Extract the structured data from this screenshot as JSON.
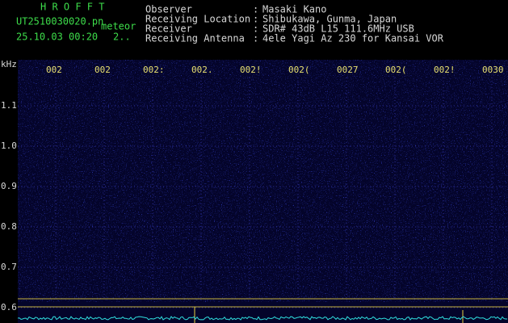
{
  "header": {
    "app": "H R O F F T",
    "file": "UT2510030020.pn",
    "mode": "meteor",
    "datetime": "25.10.03 00:20",
    "extra": "2..",
    "fields": [
      {
        "label": "Observer",
        "value": "Masaki Kano"
      },
      {
        "label": "Receiving Location",
        "value": "Shibukawa, Gunma, Japan"
      },
      {
        "label": "Receiver",
        "value": "SDR# 43dB L15 111.6MHz USB"
      },
      {
        "label": "Receiving Antenna",
        "value": "4ele Yagi Az 230 for Kansai VOR"
      }
    ],
    "separator": ":"
  },
  "spectrogram": {
    "y_unit": "kHz",
    "y_labels": [
      "1.1",
      "1.0",
      "0.9",
      "0.8",
      "0.7",
      "0.6"
    ],
    "time_labels": [
      "002",
      "002",
      "002:",
      "002.",
      "002!",
      "002(",
      "0027",
      "002(",
      "002!",
      "0030"
    ]
  }
}
